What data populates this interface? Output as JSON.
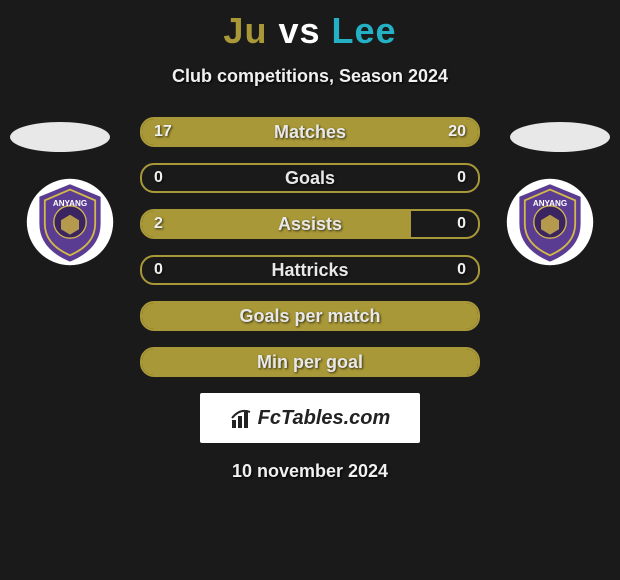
{
  "title": {
    "player1": "Ju",
    "vs": "vs",
    "player2": "Lee",
    "player1_color": "#a89838",
    "vs_color": "#ffffff",
    "player2_color": "#24b0c5"
  },
  "subtitle": "Club competitions, Season 2024",
  "team": {
    "name": "ANYANG",
    "crest_bg": "#ffffff",
    "crest_shield": "#5a3c92",
    "crest_ring": "#d4b848",
    "crest_inner": "#3a2560"
  },
  "bars": {
    "bar_color": "#a89838",
    "border_color": "#a89838",
    "bg_color": "transparent",
    "label_color": "#e8e8e8",
    "value_color": "#f0f0f0",
    "rows": [
      {
        "label": "Matches",
        "left": "17",
        "right": "20",
        "left_pct": 46,
        "right_pct": 54,
        "show_values": true
      },
      {
        "label": "Goals",
        "left": "0",
        "right": "0",
        "left_pct": 0,
        "right_pct": 0,
        "show_values": true
      },
      {
        "label": "Assists",
        "left": "2",
        "right": "0",
        "left_pct": 80,
        "right_pct": 0,
        "show_values": true
      },
      {
        "label": "Hattricks",
        "left": "0",
        "right": "0",
        "left_pct": 0,
        "right_pct": 0,
        "show_values": true
      },
      {
        "label": "Goals per match",
        "left": "",
        "right": "",
        "left_pct": 100,
        "right_pct": 0,
        "show_values": false,
        "full": true
      },
      {
        "label": "Min per goal",
        "left": "",
        "right": "",
        "left_pct": 100,
        "right_pct": 0,
        "show_values": false,
        "full": true
      }
    ]
  },
  "watermark": "FcTables.com",
  "date": "10 november 2024"
}
